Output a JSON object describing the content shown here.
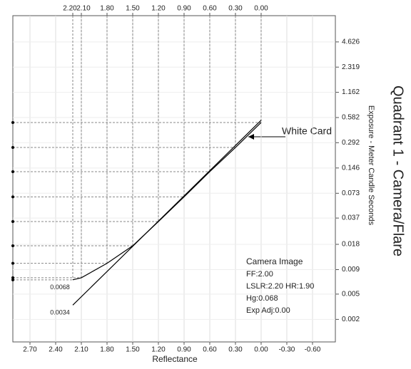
{
  "chart_data": {
    "type": "line",
    "title": "Quadrant 1 - Camera/Flare",
    "x_label": "Reflectance",
    "y_label": "Exposure - Meter Candle Seconds",
    "xlim": [
      2.9,
      -0.867
    ],
    "xticks": [
      {
        "value": 2.7,
        "label": "2.70"
      },
      {
        "value": 2.4,
        "label": "2.40"
      },
      {
        "value": 2.1,
        "label": "2.10"
      },
      {
        "value": 1.8,
        "label": "1.80"
      },
      {
        "value": 1.5,
        "label": "1.50"
      },
      {
        "value": 1.2,
        "label": "1.20"
      },
      {
        "value": 0.9,
        "label": "0.90"
      },
      {
        "value": 0.6,
        "label": "0.60"
      },
      {
        "value": 0.3,
        "label": "0.30"
      },
      {
        "value": 0,
        "label": "0.00"
      },
      {
        "value": -0.3,
        "label": "-0.30"
      },
      {
        "value": -0.6,
        "label": "-0.60"
      }
    ],
    "x2ticks": [
      {
        "value": 2.2,
        "label": "2.20"
      },
      {
        "value": 2.1,
        "label": "2.10"
      },
      {
        "value": 1.8,
        "label": "1.80"
      },
      {
        "value": 1.5,
        "label": "1.50"
      },
      {
        "value": 1.2,
        "label": "1.20"
      },
      {
        "value": 0.9,
        "label": "0.90"
      },
      {
        "value": 0.6,
        "label": "0.60"
      },
      {
        "value": 0.3,
        "label": "0.30"
      },
      {
        "value": 0,
        "label": "0.00"
      }
    ],
    "ylim": [
      0.00124,
      9.5
    ],
    "y_scale": "log",
    "yticks": [
      4.626,
      2.319,
      1.162,
      0.582,
      0.292,
      0.146,
      0.073,
      0.037,
      0.018,
      0.009,
      {
        "value": 0.0046,
        "label": "0.005"
      },
      {
        "value": 0.0023,
        "label": "0.002"
      }
    ],
    "grid": true,
    "series": [
      {
        "color": "#000000",
        "x": [
          2.2,
          2.1,
          1.8,
          1.5,
          1.2,
          0.9,
          0.6,
          0.3,
          0.0
        ],
        "values": [
          0.0068,
          0.0072,
          0.0107,
          0.0173,
          0.0336,
          0.0662,
          0.132,
          0.256,
          0.508
        ]
      },
      {
        "color": "#000000",
        "x": [
          2.2,
          0.0
        ],
        "values": [
          0.0034,
          0.54
        ]
      }
    ],
    "annotations": [
      "White Card"
    ],
    "info": [
      "Camera Image",
      "FF:2.00",
      "LSLR:2.20 HR:1.90",
      "Hg:0.068",
      "Exp Adj:0.00"
    ]
  }
}
